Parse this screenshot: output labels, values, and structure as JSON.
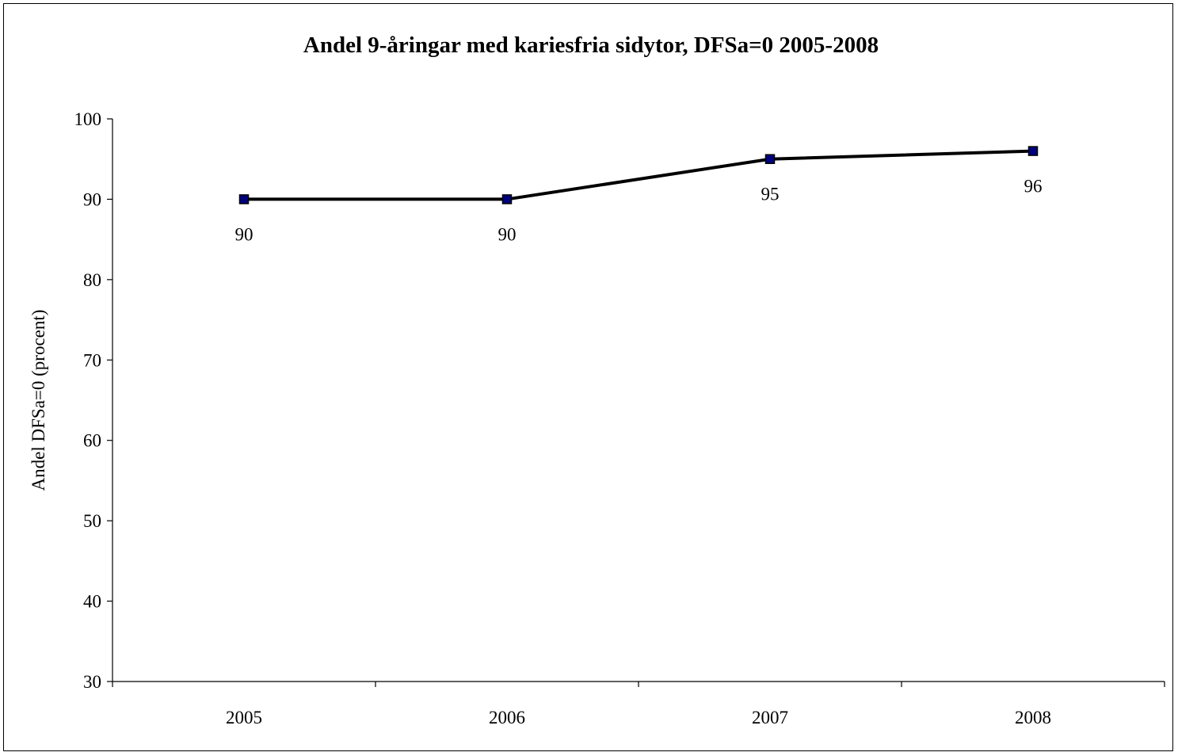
{
  "chart_data": {
    "type": "line",
    "title": "Andel 9-åringar med kariesfria sidytor, DFSa=0 2005-2008",
    "xlabel": "",
    "ylabel": "Andel DFSa=0 (procent)",
    "categories": [
      "2005",
      "2006",
      "2007",
      "2008"
    ],
    "values": [
      90,
      90,
      95,
      96
    ],
    "data_labels": [
      "90",
      "90",
      "95",
      "96"
    ],
    "ylim": [
      30,
      100
    ],
    "yticks": [
      30,
      40,
      50,
      60,
      70,
      80,
      90,
      100
    ],
    "grid": false,
    "legend": "none",
    "colors": {
      "line": "#000000",
      "marker": "#00007f",
      "marker_edge": "#000000"
    }
  }
}
